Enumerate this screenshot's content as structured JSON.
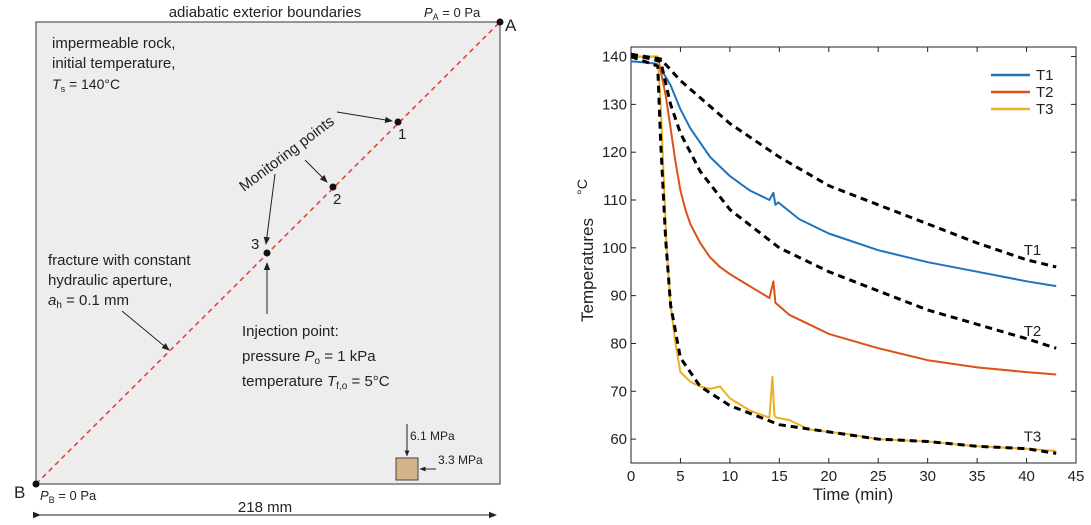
{
  "diagram": {
    "top_label": "adiabatic exterior boundaries",
    "corner_a": {
      "name": "A",
      "pressure_sym": "P",
      "pressure_sub": "A",
      "pressure_val": " = 0 Pa"
    },
    "corner_b": {
      "name": "B",
      "pressure_sym": "P",
      "pressure_sub": "B",
      "pressure_val": " = 0 Pa"
    },
    "rock_label": {
      "line1": "impermeable rock,",
      "line2": "initial temperature,",
      "t_sym": "T",
      "t_sub": "s",
      "t_val": " = 140°C"
    },
    "monitoring_label": "Monitoring points",
    "points": [
      "1",
      "2",
      "3"
    ],
    "fracture_label": {
      "line1": "fracture with constant",
      "line2": "hydraulic aperture,",
      "a_sym": "a",
      "a_sub": "h",
      "a_val": " = 0.1 mm"
    },
    "injection_label": {
      "line1": "Injection point:",
      "p_pre": "pressure ",
      "p_sym": "P",
      "p_sub": "o",
      "p_val": " = 1 kPa",
      "t_pre": "temperature ",
      "t_sym": "T",
      "t_sub": "f,o",
      "t_val": " = 5°C"
    },
    "stress_vertical": "6.1 MPa",
    "stress_horizontal": "3.3 MPa",
    "width_label": "218 mm",
    "colors": {
      "fracture": "#e8423a",
      "box_fill": "#ededed",
      "stress_box": "#d5b48c"
    }
  },
  "chart_data": {
    "type": "line",
    "xlabel": "Time (min)",
    "ylabel": "Temperatures",
    "ylabel_unit": "°C",
    "xlim": [
      0,
      45
    ],
    "ylim": [
      55,
      142
    ],
    "xticks": [
      0,
      5,
      10,
      15,
      20,
      25,
      30,
      35,
      40,
      45
    ],
    "yticks": [
      60,
      70,
      80,
      90,
      100,
      110,
      120,
      130,
      140
    ],
    "legend_position": "top-right",
    "series": [
      {
        "name": "T1",
        "color": "#1f72bd",
        "x": [
          0,
          2.7,
          3,
          4,
          5,
          6,
          8,
          10,
          12,
          14,
          14.4,
          14.6,
          14.9,
          17,
          20,
          25,
          30,
          35,
          40,
          43
        ],
        "y": [
          139,
          138.5,
          137.5,
          134,
          129,
          125,
          119,
          115,
          112,
          110,
          111.5,
          109,
          109.5,
          106,
          103,
          99.5,
          97,
          95,
          93,
          92
        ]
      },
      {
        "name": "T2",
        "color": "#d95319",
        "x": [
          0,
          2.7,
          3,
          3.5,
          4,
          4.5,
          5,
          5.5,
          6,
          7,
          8,
          9,
          10,
          12,
          14,
          14.4,
          14.6,
          14.9,
          16,
          18,
          20,
          25,
          30,
          35,
          40,
          43
        ],
        "y": [
          140,
          140,
          137,
          132,
          125,
          118,
          112,
          108,
          105,
          101,
          98,
          96,
          94.5,
          92,
          89.5,
          93,
          88.5,
          88,
          86,
          84,
          82,
          79,
          76.5,
          75,
          74,
          73.5
        ]
      },
      {
        "name": "T3",
        "color": "#edb120",
        "x": [
          0,
          2.7,
          3,
          3.3,
          3.6,
          4,
          4.5,
          5,
          6,
          7,
          8,
          9,
          10,
          12,
          14,
          14.3,
          14.5,
          14.7,
          16,
          18,
          20,
          22,
          25,
          30,
          35,
          40,
          43
        ],
        "y": [
          140,
          140,
          130,
          115,
          100,
          88,
          80,
          74,
          72,
          71,
          70.5,
          71,
          68.5,
          66,
          64.5,
          73,
          65,
          64.5,
          64,
          62,
          61.5,
          61,
          60,
          59.5,
          58.5,
          58,
          57.5
        ]
      }
    ],
    "reference_curves": [
      {
        "label": "T1",
        "x": [
          0,
          3,
          5,
          10,
          15,
          20,
          25,
          30,
          35,
          40,
          43
        ],
        "y": [
          140.5,
          139.5,
          135,
          126,
          119,
          113,
          109,
          105,
          101,
          97.5,
          96
        ]
      },
      {
        "label": "T2",
        "x": [
          0,
          3,
          4,
          5,
          7,
          10,
          15,
          20,
          25,
          30,
          35,
          40,
          43
        ],
        "y": [
          140.5,
          139,
          130,
          124,
          116,
          108,
          100,
          95,
          91,
          87,
          84,
          81,
          79
        ]
      },
      {
        "label": "T3",
        "x": [
          0,
          2.7,
          3,
          3.5,
          4,
          5,
          7,
          10,
          15,
          20,
          25,
          30,
          35,
          40,
          43
        ],
        "y": [
          140,
          138,
          122,
          102,
          88,
          77,
          71,
          67,
          63,
          61.5,
          60,
          59.5,
          58.5,
          58,
          57
        ]
      }
    ]
  }
}
